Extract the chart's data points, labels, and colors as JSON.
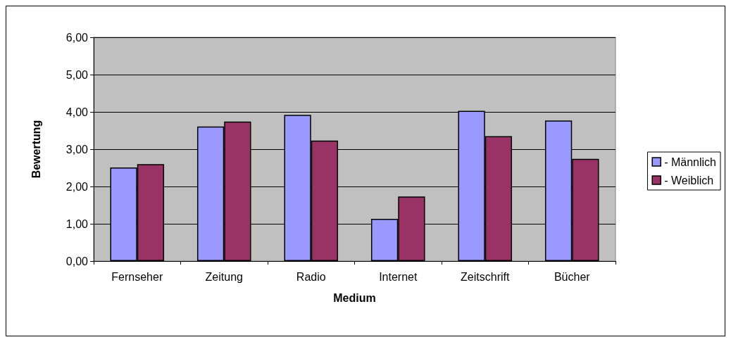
{
  "chart_data": {
    "type": "bar",
    "xlabel": "Medium",
    "ylabel": "Bewertung",
    "categories": [
      "Fernseher",
      "Zeitung",
      "Radio",
      "Internet",
      "Zeitschrift",
      "Bücher"
    ],
    "series": [
      {
        "name": "- Männlich",
        "color": "#9999ff",
        "values": [
          2.51,
          3.61,
          3.92,
          1.13,
          4.03,
          3.77
        ]
      },
      {
        "name": "- Weiblich",
        "color": "#993366",
        "values": [
          2.6,
          3.74,
          3.23,
          1.73,
          3.35,
          2.74
        ]
      }
    ],
    "ylim": [
      0,
      6
    ],
    "yticks": [
      {
        "value": 0,
        "label": "0,00"
      },
      {
        "value": 1,
        "label": "1,00"
      },
      {
        "value": 2,
        "label": "2,00"
      },
      {
        "value": 3,
        "label": "3,00"
      },
      {
        "value": 4,
        "label": "4,00"
      },
      {
        "value": 5,
        "label": "5,00"
      },
      {
        "value": 6,
        "label": "6,00"
      }
    ],
    "grid": "y",
    "legend": "right"
  }
}
